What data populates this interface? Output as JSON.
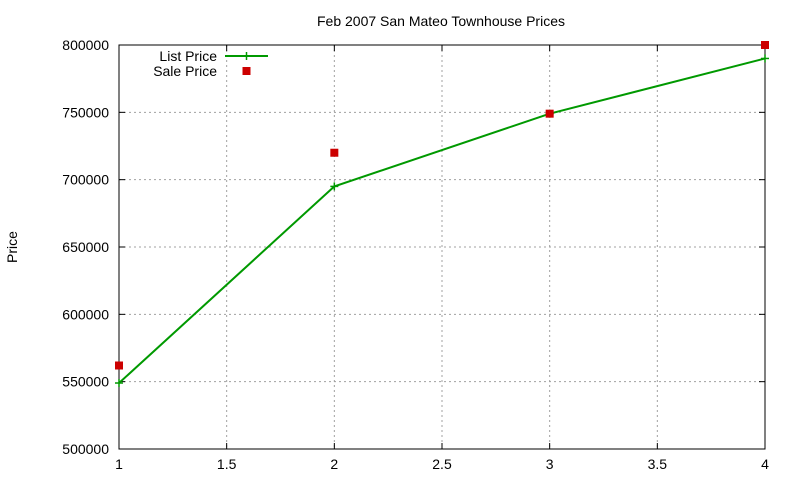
{
  "chart_data": {
    "type": "line",
    "title": "Feb 2007 San Mateo Townhouse Prices",
    "xlabel": "",
    "ylabel": "Price",
    "xlim": [
      1,
      4
    ],
    "ylim": [
      500000,
      800000
    ],
    "x_ticks": [
      "1",
      "1.5",
      "2",
      "2.5",
      "3",
      "3.5",
      "4"
    ],
    "y_ticks": [
      "500000",
      "550000",
      "600000",
      "650000",
      "700000",
      "750000",
      "800000"
    ],
    "grid": true,
    "legend_position": "top-left",
    "series": [
      {
        "name": "List Price",
        "style": "lines+points",
        "color": "#009900",
        "x": [
          1,
          2,
          3,
          4
        ],
        "y": [
          549000,
          695000,
          749000,
          790000
        ]
      },
      {
        "name": "Sale Price",
        "style": "points",
        "color": "#cc0000",
        "x": [
          1,
          2,
          3,
          4
        ],
        "y": [
          562000,
          720000,
          749000,
          800000
        ]
      }
    ]
  }
}
